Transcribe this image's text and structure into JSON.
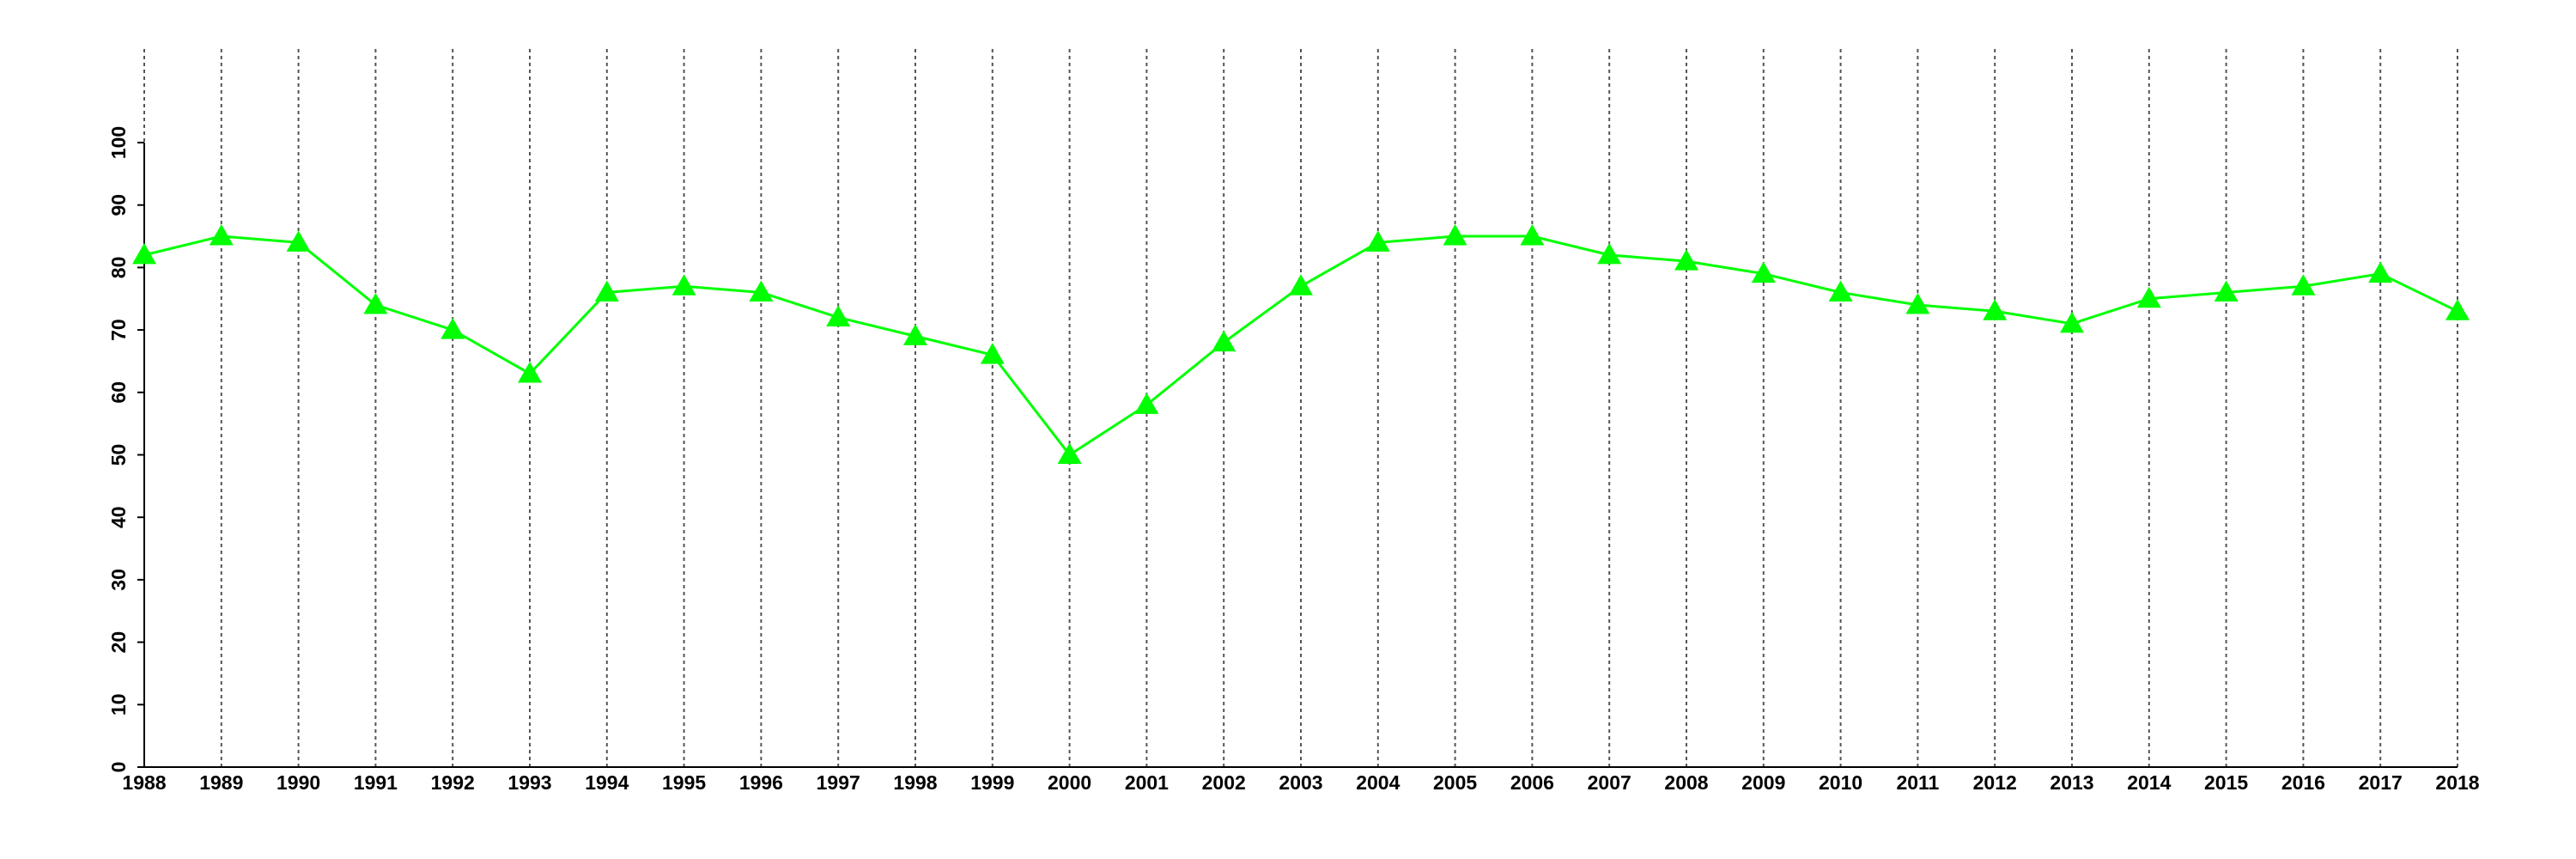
{
  "chart_data": {
    "type": "line",
    "x": [
      1988,
      1989,
      1990,
      1991,
      1992,
      1993,
      1994,
      1995,
      1996,
      1997,
      1998,
      1999,
      2000,
      2001,
      2002,
      2003,
      2004,
      2005,
      2006,
      2007,
      2008,
      2009,
      2010,
      2011,
      2012,
      2013,
      2014,
      2015,
      2016,
      2017,
      2018
    ],
    "series": [
      {
        "color": "#00ff00",
        "marker": "triangle",
        "values": [
          82,
          85,
          84,
          74,
          70,
          63,
          76,
          77,
          76,
          72,
          69,
          66,
          50,
          58,
          68,
          77,
          84,
          85,
          85,
          82,
          81,
          79,
          76,
          74,
          73,
          71,
          75,
          76,
          77,
          79,
          73
        ]
      }
    ],
    "xlim": [
      1988,
      2018
    ],
    "xticks": [
      1988,
      1989,
      1990,
      1991,
      1992,
      1993,
      1994,
      1995,
      1996,
      1997,
      1998,
      1999,
      2000,
      2001,
      2002,
      2003,
      2004,
      2005,
      2006,
      2007,
      2008,
      2009,
      2010,
      2011,
      2012,
      2013,
      2014,
      2015,
      2016,
      2017,
      2018
    ],
    "ylim": [
      0,
      100
    ],
    "yticks": [
      0,
      10,
      20,
      30,
      40,
      50,
      60,
      70,
      80,
      90,
      100
    ],
    "grid": "x"
  }
}
